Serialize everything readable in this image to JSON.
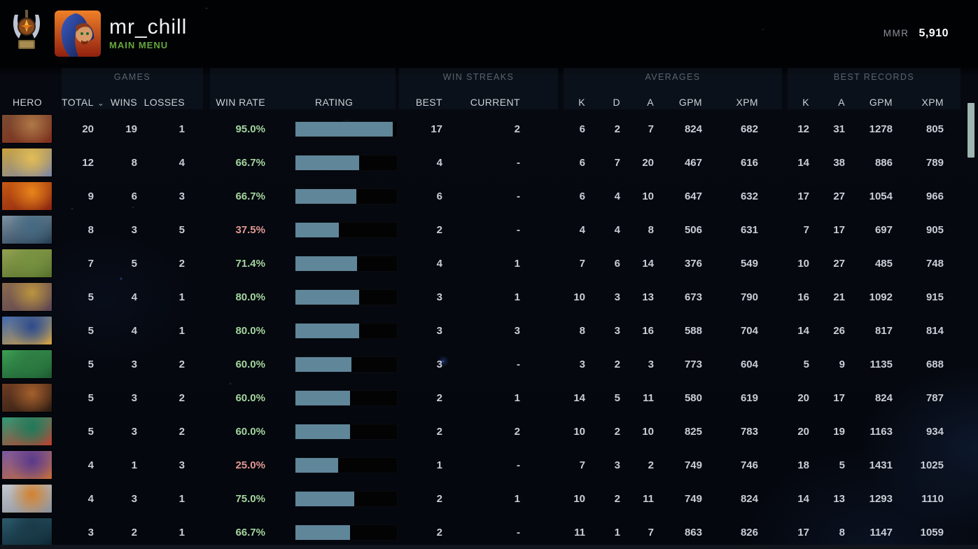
{
  "header": {
    "username": "mr_chill",
    "menu_label": "MAIN MENU",
    "mmr_label": "MMR",
    "mmr_value": "5,910"
  },
  "icons": {
    "sort_chevron": "⌄",
    "rank_medal": "winged-medal",
    "avatar": "blue-hooded-character"
  },
  "colors": {
    "menu_green": "#64a83e",
    "bar_fill": "#60869a",
    "win_positive": "#a4d59e",
    "win_negative": "#e29a94",
    "scrollbar_thumb": "#9eb5b0",
    "row_text": "#c9ced6"
  },
  "table": {
    "groups": {
      "games": "GAMES",
      "win_streaks": "WIN STREAKS",
      "averages": "AVERAGES",
      "best_records": "BEST RECORDS"
    },
    "columns": {
      "hero": "HERO",
      "total": "TOTAL",
      "wins": "WINS",
      "losses": "LOSSES",
      "win_rate": "WIN RATE",
      "rating": "RATING",
      "best": "BEST",
      "current": "CURRENT",
      "k": "K",
      "d": "D",
      "a": "A",
      "gpm": "GPM",
      "xpm": "XPM"
    },
    "rows": [
      {
        "portrait_colors": [
          "#7a4c32",
          "#b07846",
          "#7e2f1d"
        ],
        "total": "20",
        "wins": "19",
        "losses": "1",
        "win_rate": "95.0%",
        "win_rate_positive": true,
        "rating_fill": 0.96,
        "streak_best": "17",
        "streak_current": "2",
        "avg_k": "6",
        "avg_d": "2",
        "avg_a": "7",
        "avg_gpm": "824",
        "avg_xpm": "682",
        "best_k": "12",
        "best_a": "31",
        "best_gpm": "1278",
        "best_xpm": "805"
      },
      {
        "portrait_colors": [
          "#caa23c",
          "#e3bd55",
          "#7e86a6"
        ],
        "total": "12",
        "wins": "8",
        "losses": "4",
        "win_rate": "66.7%",
        "win_rate_positive": true,
        "rating_fill": 0.63,
        "streak_best": "4",
        "streak_current": "-",
        "avg_k": "6",
        "avg_d": "7",
        "avg_a": "20",
        "avg_gpm": "467",
        "avg_xpm": "616",
        "best_k": "14",
        "best_a": "38",
        "best_gpm": "886",
        "best_xpm": "789"
      },
      {
        "portrait_colors": [
          "#c85a12",
          "#e8851c",
          "#8a2410"
        ],
        "total": "9",
        "wins": "6",
        "losses": "3",
        "win_rate": "66.7%",
        "win_rate_positive": true,
        "rating_fill": 0.6,
        "streak_best": "6",
        "streak_current": "-",
        "avg_k": "6",
        "avg_d": "4",
        "avg_a": "10",
        "avg_gpm": "647",
        "avg_xpm": "632",
        "best_k": "17",
        "best_a": "27",
        "best_gpm": "1054",
        "best_xpm": "966"
      },
      {
        "portrait_colors": [
          "#7e93a2",
          "#456a83",
          "#243d52"
        ],
        "total": "8",
        "wins": "3",
        "losses": "5",
        "win_rate": "37.5%",
        "win_rate_positive": false,
        "rating_fill": 0.43,
        "streak_best": "2",
        "streak_current": "-",
        "avg_k": "4",
        "avg_d": "4",
        "avg_a": "8",
        "avg_gpm": "506",
        "avg_xpm": "631",
        "best_k": "7",
        "best_a": "17",
        "best_gpm": "697",
        "best_xpm": "905"
      },
      {
        "portrait_colors": [
          "#93a251",
          "#76923f",
          "#55702c"
        ],
        "total": "7",
        "wins": "5",
        "losses": "2",
        "win_rate": "71.4%",
        "win_rate_positive": true,
        "rating_fill": 0.61,
        "streak_best": "4",
        "streak_current": "1",
        "avg_k": "7",
        "avg_d": "6",
        "avg_a": "14",
        "avg_gpm": "376",
        "avg_xpm": "549",
        "best_k": "10",
        "best_a": "27",
        "best_gpm": "485",
        "best_xpm": "748"
      },
      {
        "portrait_colors": [
          "#8a6a4e",
          "#bb9440",
          "#5c4452"
        ],
        "total": "5",
        "wins": "4",
        "losses": "1",
        "win_rate": "80.0%",
        "win_rate_positive": true,
        "rating_fill": 0.63,
        "streak_best": "3",
        "streak_current": "1",
        "avg_k": "10",
        "avg_d": "3",
        "avg_a": "13",
        "avg_gpm": "673",
        "avg_xpm": "790",
        "best_k": "16",
        "best_a": "21",
        "best_gpm": "1092",
        "best_xpm": "915"
      },
      {
        "portrait_colors": [
          "#3e68ae",
          "#2c4b8c",
          "#d2a244"
        ],
        "total": "5",
        "wins": "4",
        "losses": "1",
        "win_rate": "80.0%",
        "win_rate_positive": true,
        "rating_fill": 0.63,
        "streak_best": "3",
        "streak_current": "3",
        "avg_k": "8",
        "avg_d": "3",
        "avg_a": "16",
        "avg_gpm": "588",
        "avg_xpm": "704",
        "best_k": "14",
        "best_a": "26",
        "best_gpm": "817",
        "best_xpm": "814"
      },
      {
        "portrait_colors": [
          "#3c9e52",
          "#2d7c42",
          "#1c5a32"
        ],
        "total": "5",
        "wins": "3",
        "losses": "2",
        "win_rate": "60.0%",
        "win_rate_positive": true,
        "rating_fill": 0.55,
        "streak_best": "3",
        "streak_current": "-",
        "avg_k": "3",
        "avg_d": "2",
        "avg_a": "3",
        "avg_gpm": "773",
        "avg_xpm": "604",
        "best_k": "5",
        "best_a": "9",
        "best_gpm": "1135",
        "best_xpm": "688"
      },
      {
        "portrait_colors": [
          "#6e3d24",
          "#a4602c",
          "#2e1c12"
        ],
        "total": "5",
        "wins": "3",
        "losses": "2",
        "win_rate": "60.0%",
        "win_rate_positive": true,
        "rating_fill": 0.54,
        "streak_best": "2",
        "streak_current": "1",
        "avg_k": "14",
        "avg_d": "5",
        "avg_a": "11",
        "avg_gpm": "580",
        "avg_xpm": "619",
        "best_k": "20",
        "best_a": "17",
        "best_gpm": "824",
        "best_xpm": "787"
      },
      {
        "portrait_colors": [
          "#2c9a76",
          "#1e7a5a",
          "#bc4030"
        ],
        "total": "5",
        "wins": "3",
        "losses": "2",
        "win_rate": "60.0%",
        "win_rate_positive": true,
        "rating_fill": 0.54,
        "streak_best": "2",
        "streak_current": "2",
        "avg_k": "10",
        "avg_d": "2",
        "avg_a": "10",
        "avg_gpm": "825",
        "avg_xpm": "783",
        "best_k": "20",
        "best_a": "19",
        "best_gpm": "1163",
        "best_xpm": "934"
      },
      {
        "portrait_colors": [
          "#7a57a2",
          "#59398c",
          "#c06c3a"
        ],
        "total": "4",
        "wins": "1",
        "losses": "3",
        "win_rate": "25.0%",
        "win_rate_positive": false,
        "rating_fill": 0.42,
        "streak_best": "1",
        "streak_current": "-",
        "avg_k": "7",
        "avg_d": "3",
        "avg_a": "2",
        "avg_gpm": "749",
        "avg_xpm": "746",
        "best_k": "18",
        "best_a": "5",
        "best_gpm": "1431",
        "best_xpm": "1025"
      },
      {
        "portrait_colors": [
          "#c3c8cf",
          "#d4812c",
          "#8b9099"
        ],
        "total": "4",
        "wins": "3",
        "losses": "1",
        "win_rate": "75.0%",
        "win_rate_positive": true,
        "rating_fill": 0.58,
        "streak_best": "2",
        "streak_current": "1",
        "avg_k": "10",
        "avg_d": "2",
        "avg_a": "11",
        "avg_gpm": "749",
        "avg_xpm": "824",
        "best_k": "14",
        "best_a": "13",
        "best_gpm": "1293",
        "best_xpm": "1110"
      },
      {
        "portrait_colors": [
          "#2c5a6c",
          "#1a3a48",
          "#0c2430"
        ],
        "total": "3",
        "wins": "2",
        "losses": "1",
        "win_rate": "66.7%",
        "win_rate_positive": true,
        "rating_fill": 0.54,
        "streak_best": "2",
        "streak_current": "-",
        "avg_k": "11",
        "avg_d": "1",
        "avg_a": "7",
        "avg_gpm": "863",
        "avg_xpm": "826",
        "best_k": "17",
        "best_a": "8",
        "best_gpm": "1147",
        "best_xpm": "1059"
      }
    ]
  }
}
